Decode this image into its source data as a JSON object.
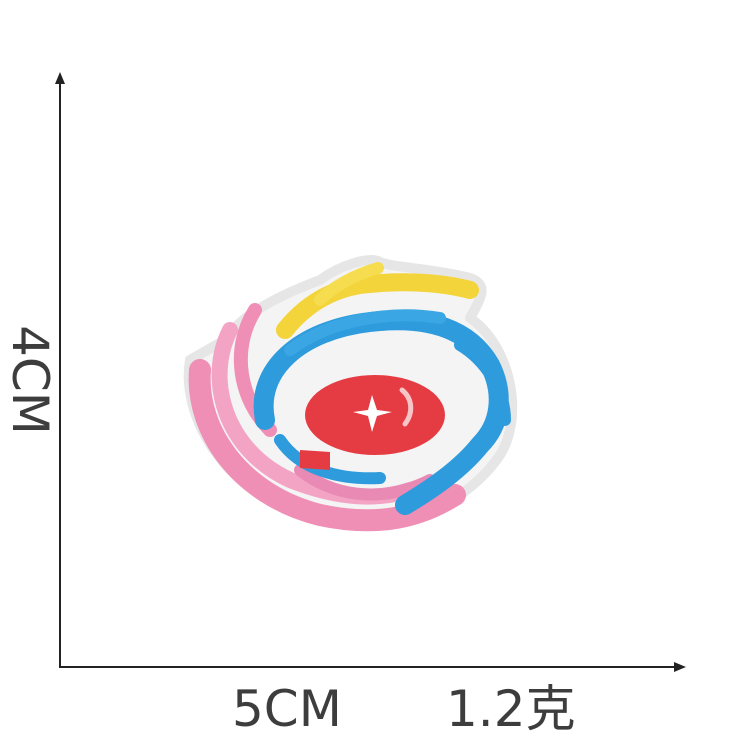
{
  "dimensions": {
    "height_label": "4CM",
    "width_label": "5CM",
    "weight_label": "1.2克"
  },
  "product": {
    "icon": "swirl-embroidered-patch",
    "colors": {
      "pink": "#ef8fb6",
      "yellow": "#f3d43a",
      "blue": "#2e9bdc",
      "red": "#e53b42",
      "backing": "#f2f2f2",
      "axis": "#222222",
      "text": "#3d3d3d"
    }
  }
}
